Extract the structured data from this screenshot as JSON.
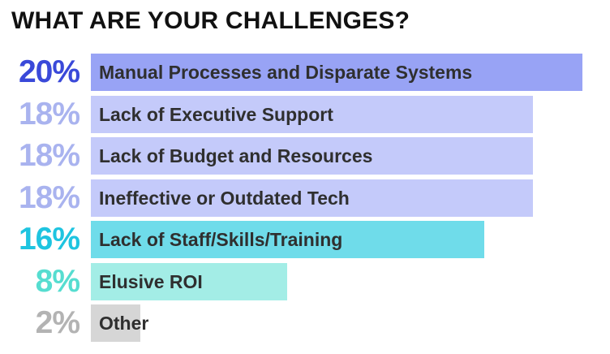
{
  "chart_data": {
    "type": "bar",
    "orientation": "horizontal",
    "title": "WHAT ARE YOUR CHALLENGES?",
    "unit": "%",
    "xlim": [
      0,
      20
    ],
    "grid": false,
    "categories": [
      "Manual Processes and Disparate Systems",
      "Lack of Executive Support",
      "Lack of Budget and Resources",
      "Ineffective or Outdated Tech",
      "Lack of Staff/Skills/Training",
      "Elusive ROI",
      "Other"
    ],
    "values": [
      20,
      18,
      18,
      18,
      16,
      8,
      2
    ],
    "value_labels": [
      "20%",
      "18%",
      "18%",
      "18%",
      "16%",
      "8%",
      "2%"
    ],
    "bar_colors": [
      "#98a3f5",
      "#c4cafa",
      "#c4cafa",
      "#c4cafa",
      "#6fdcea",
      "#a3ede6",
      "#d6d6d6"
    ],
    "value_label_colors": [
      "#3a49d9",
      "#a9b3ef",
      "#a9b3ef",
      "#a9b3ef",
      "#1ec4e0",
      "#56ddd0",
      "#b3b3b3"
    ]
  }
}
